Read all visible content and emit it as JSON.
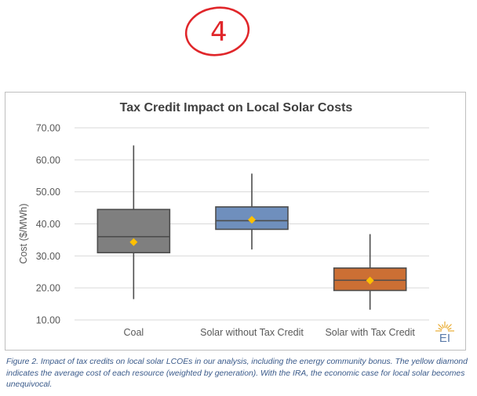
{
  "annotation": {
    "handwritten_number": "4",
    "color": "#e0262a"
  },
  "chart_data": {
    "type": "boxplot",
    "title": "Tax Credit Impact on Local Solar Costs",
    "ylabel": "Cost ($/MWh)",
    "xlabel": "",
    "ylim": [
      10,
      70
    ],
    "yticks": [
      "10.00",
      "20.00",
      "30.00",
      "40.00",
      "50.00",
      "60.00",
      "70.00"
    ],
    "ytick_values": [
      10,
      20,
      30,
      40,
      50,
      60,
      70
    ],
    "grid": true,
    "categories": [
      "Coal",
      "Solar without Tax Credit",
      "Solar with Tax Credit"
    ],
    "series": [
      {
        "category": "Coal",
        "min": 16.5,
        "q1": 31.0,
        "median": 36.0,
        "q3": 44.5,
        "max": 64.5,
        "mean": 34.3,
        "color": "#7f7f7f"
      },
      {
        "category": "Solar without Tax Credit",
        "min": 32.0,
        "q1": 38.3,
        "median": 41.0,
        "q3": 45.3,
        "max": 55.7,
        "mean": 41.3,
        "color": "#6f8fbd"
      },
      {
        "category": "Solar with Tax Credit",
        "min": 13.2,
        "q1": 19.2,
        "median": 22.4,
        "q3": 26.2,
        "max": 36.8,
        "mean": 22.3,
        "color": "#cc6f34"
      }
    ],
    "mean_marker_color": "#ffc000",
    "logo_text": "EI"
  },
  "caption": "Figure 2. Impact of tax credits on local solar LCOEs in our analysis, including the energy community bonus. The yellow diamond indicates the average cost of each resource (weighted by generation). With the IRA, the economic case for local solar becomes unequivocal."
}
